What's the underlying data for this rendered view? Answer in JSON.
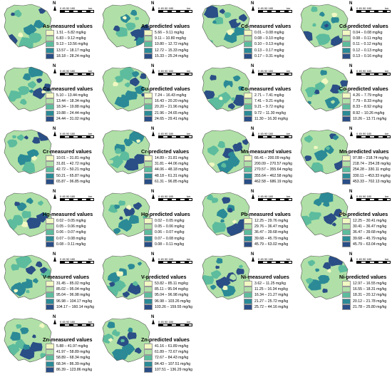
{
  "colors": [
    "#f1f8c2",
    "#b0e0a7",
    "#5cbc9d",
    "#2b8a96",
    "#2a4e86"
  ],
  "scale_ticks": "0 45 90    180",
  "scale_unit": "km",
  "north_label": "N",
  "panels": [
    {
      "title": "As-measured values",
      "classes": [
        "1.51 – 6.82 mg/kg",
        "6.83 – 9.12 mg/kg",
        "9.13 – 13.56 mg/kg",
        "13.57 – 18.17 mg/kg",
        "18.18 – 28.24 mg/kg"
      ]
    },
    {
      "title": "As-predicted values",
      "classes": [
        "5.66 – 9.11 mg/kg",
        "9.11 – 10.80 mg/kg",
        "10.80 – 12.72 mg/kg",
        "12.72 – 15.33 mg/kg",
        "15.33 – 25.24 mg/kg"
      ]
    },
    {
      "title": "Cd-measured values",
      "classes": [
        "0.01 – 0.08 mg/kg",
        "0.08 – 0.10 mg/kg",
        "0.10 – 0.13 mg/kg",
        "0.13 – 0.17 mg/kg",
        "0.17 – 0.31 mg/kg"
      ]
    },
    {
      "title": "Cd-predicted values",
      "classes": [
        "0.04 – 0.08 mg/kg",
        "0.08 – 0.11 mg/kg",
        "0.11 – 0.12 mg/kg",
        "0.12 – 0.13 mg/kg",
        "0.13 – 0.16 mg/kg"
      ]
    },
    {
      "title": "Cu-measured values",
      "classes": [
        "5.10 – 13.44 mg/kg",
        "13.44 – 18.34 mg/kg",
        "18.34 – 19.88 mg/kg",
        "19.88 – 24.44 mg/kg",
        "24.44 – 31.02 mg/kg"
      ]
    },
    {
      "title": "Cu-predicted values",
      "classes": [
        "7.24 – 16.43 mg/kg",
        "16.43 – 20.20 mg/kg",
        "20.20 – 21.96 mg/kg",
        "21.96 – 24.65 mg/kg",
        "24.65 – 29.41 mg/kg"
      ]
    },
    {
      "title": "Co-measured values",
      "classes": [
        "2.71 – 7.41 mg/kg",
        "7.41 – 9.21 mg/kg",
        "9.21 – 9.72 mg/kg",
        "9.72 – 11.30 mg/kg",
        "11.30 – 16.30 mg/kg"
      ]
    },
    {
      "title": "Co-predicted values",
      "classes": [
        "4.26 – 7.79 mg/kg",
        "7.79 – 8.33 mg/kg",
        "8.33 – 8.92 mg/kg",
        "8.92 – 10.26 mg/kg",
        "10.26 – 13.71 mg/kg"
      ]
    },
    {
      "title": "Cr-measured values",
      "classes": [
        "10.01 – 31.81 mg/kg",
        "31.81 – 42.72 mg/kg",
        "42.72 – 50.21 mg/kg",
        "50.21 – 65.87 mg/kg",
        "65.87 – 96.85 mg/kg"
      ]
    },
    {
      "title": "Cr-predicted values",
      "classes": [
        "14.89 – 31.81 mg/kg",
        "31.81 – 44.06 mg/kg",
        "44.06 – 48.18 mg/kg",
        "48.18 – 61.31 mg/kg",
        "61.31 – 96.85 mg/kg"
      ]
    },
    {
      "title": "Mn-measured values",
      "classes": [
        "66.41 – 200.09 mg/kg",
        "200.09 – 270.57 mg/kg",
        "270.57 – 355.64 mg/kg",
        "355.64 – 462.58 mg/kg",
        "462.58 – 686.19 mg/kg"
      ]
    },
    {
      "title": "Mn-predicted values",
      "classes": [
        "97.88 – 218.74 mg/kg",
        "218.74 – 254.28 mg/kg",
        "254.28 – 330.11 mg/kg",
        "330.11 – 453.33 mg/kg",
        "453.33 – 702.13 mg/kg"
      ]
    },
    {
      "title": "Hg-measured values",
      "classes": [
        "0.02 – 0.05 mg/kg",
        "0.05 – 0.06 mg/kg",
        "0.06 – 0.07 mg/kg",
        "0.07 – 0.08 mg/kg",
        "0.08 – 0.11 mg/kg"
      ]
    },
    {
      "title": "Hg-predicted values",
      "classes": [
        "0.02 – 0.05 mg/kg",
        "0.05 – 0.06 mg/kg",
        "0.06 – 0.07 mg/kg",
        "0.07 – 0.08 mg/kg",
        "0.08 – 0.11 mg/kg"
      ]
    },
    {
      "title": "Pb-measured values",
      "classes": [
        "12.25 – 29.76 mg/kg",
        "29.76 – 36.47 mg/kg",
        "36.47 – 39.68 mg/kg",
        "39.68 – 45.79 mg/kg",
        "45.79 – 63.02 mg/kg"
      ]
    },
    {
      "title": "Pb-predicted values",
      "classes": [
        "12.25 – 30.41 mg/kg",
        "30.41 – 36.47 mg/kg",
        "36.47 – 39.68 mg/kg",
        "39.68 – 45.79 mg/kg",
        "45.79 – 63.04 mg/kg"
      ]
    },
    {
      "title": "V-measured values",
      "classes": [
        "31.45 – 85.02 mg/kg",
        "85.02 – 95.04 mg/kg",
        "95.04 – 96.98 mg/kg",
        "96.98 – 104.17 mg/kg",
        "104.17 – 160.14 mg/kg"
      ]
    },
    {
      "title": "V-predicted values",
      "classes": [
        "53.82 – 85.11 mg/kg",
        "85.11 – 95.04 mg/kg",
        "95.04 – 96.98 mg/kg",
        "96.98 – 103.26 mg/kg",
        "103.26 – 159.55 mg/kg"
      ]
    },
    {
      "title": "Ni-measured values",
      "classes": [
        "3.62 – 11.25 mg/kg",
        "11.25 – 16.34 mg/kg",
        "16.34 – 21.27 mg/kg",
        "21.27 – 25.72 mg/kg",
        "25.72 – 44.16 mg/kg"
      ]
    },
    {
      "title": "Ni-predicted values",
      "classes": [
        "12.97 – 16.55 mg/kg",
        "16.55 – 18.31 mg/kg",
        "18.31 – 20.12 mg/kg",
        "20.12 – 21.78 mg/kg",
        "21.78 – 25.80 mg/kg"
      ]
    },
    {
      "title": "Zn-measured values",
      "classes": [
        "5.88 – 41.97 mg/kg",
        "41.97 – 58.89 mg/kg",
        "58.89 – 68.34 mg/kg",
        "68.34 – 86.39 mg/kg",
        "86.39 – 123.86 mg/kg"
      ]
    },
    {
      "title": "Zn-predicted values",
      "classes": [
        "41.16 – 61.89 mg/kg",
        "61.89 – 72.67 mg/kg",
        "72.67 – 84.43 mg/kg",
        "84.43 – 107.51 mg/kg",
        "107.51 – 136.29 mg/kg"
      ]
    }
  ]
}
